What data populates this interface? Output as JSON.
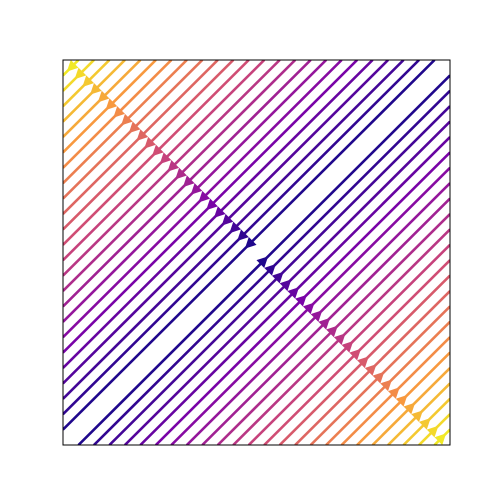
{
  "chart_data": {
    "type": "streamplot",
    "cmap": "plasma",
    "xlim": [
      -1,
      1
    ],
    "ylim": [
      -1,
      1
    ],
    "offsets": [
      -1.92,
      -1.84,
      -1.76,
      -1.68,
      -1.6,
      -1.52,
      -1.44,
      -1.36,
      -1.28,
      -1.2,
      -1.12,
      -1.04,
      -0.96,
      -0.88,
      -0.8,
      -0.72,
      -0.64,
      -0.56,
      -0.48,
      -0.4,
      -0.32,
      -0.24,
      -0.16,
      -0.08,
      0.08,
      0.16,
      0.24,
      0.32,
      0.4,
      0.48,
      0.56,
      0.64,
      0.72,
      0.8,
      0.88,
      0.96,
      1.04,
      1.12,
      1.2,
      1.28,
      1.36,
      1.44,
      1.52,
      1.6,
      1.68,
      1.76,
      1.84,
      1.92
    ]
  }
}
